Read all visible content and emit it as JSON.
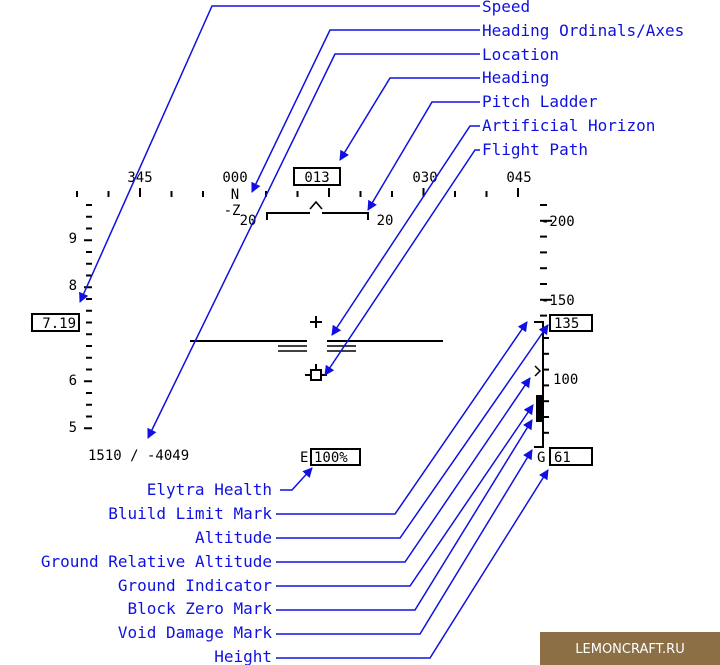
{
  "hud": {
    "heading_labels": [
      "345",
      "000",
      "030",
      "045"
    ],
    "heading_value": "013",
    "ordinal": "N",
    "axis": "-Z",
    "pitch_left": "20",
    "pitch_right": "20",
    "speed_labels": [
      "9",
      "8",
      "6",
      "5"
    ],
    "speed_value": "7.19",
    "altitude_labels": [
      "-200",
      "-150",
      "100"
    ],
    "altitude_value": "135",
    "ground_letter": "G",
    "height_value": "61",
    "elytra_letter": "E",
    "elytra_value": "100%",
    "location": "1510 / -4049"
  },
  "labels_top": [
    "Speed",
    "Heading Ordinals/Axes",
    "Location",
    "Heading",
    "Pitch Ladder",
    "Artificial Horizon",
    "Flight Path"
  ],
  "labels_bottom": [
    "Elytra Health",
    "Bluild Limit Mark",
    "Altitude",
    "Ground Relative Altitude",
    "Ground Indicator",
    "Block Zero Mark",
    "Void Damage Mark",
    "Height"
  ],
  "watermark": "LEMONCRAFT.RU",
  "colors": {
    "annotation": "#1010e0",
    "watermark_bg": "#8c6f45"
  }
}
